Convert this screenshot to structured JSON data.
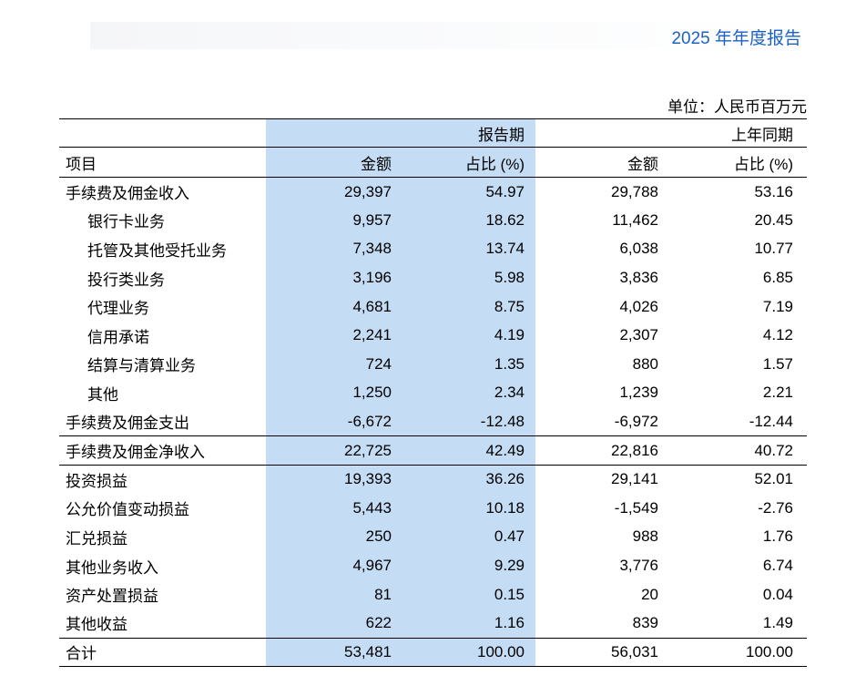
{
  "page": {
    "title": "2025 年年度报告",
    "unit_note": "单位：人民币百万元"
  },
  "colors": {
    "highlight": "#c5dcf5",
    "title_blue": "#1b62c4"
  },
  "table": {
    "header": {
      "item": "项目",
      "period_current": "报告期",
      "period_prior": "上年同期",
      "amount": "金额",
      "ratio": "占比 (%)"
    },
    "rows": [
      {
        "item": "手续费及佣金收入",
        "indent": 0,
        "current_amount": "29,397",
        "current_ratio": "54.97",
        "prior_amount": "29,788",
        "prior_ratio": "53.16"
      },
      {
        "item": "银行卡业务",
        "indent": 1,
        "current_amount": "9,957",
        "current_ratio": "18.62",
        "prior_amount": "11,462",
        "prior_ratio": "20.45"
      },
      {
        "item": "托管及其他受托业务",
        "indent": 1,
        "current_amount": "7,348",
        "current_ratio": "13.74",
        "prior_amount": "6,038",
        "prior_ratio": "10.77"
      },
      {
        "item": "投行类业务",
        "indent": 1,
        "current_amount": "3,196",
        "current_ratio": "5.98",
        "prior_amount": "3,836",
        "prior_ratio": "6.85"
      },
      {
        "item": "代理业务",
        "indent": 1,
        "current_amount": "4,681",
        "current_ratio": "8.75",
        "prior_amount": "4,026",
        "prior_ratio": "7.19"
      },
      {
        "item": "信用承诺",
        "indent": 1,
        "current_amount": "2,241",
        "current_ratio": "4.19",
        "prior_amount": "2,307",
        "prior_ratio": "4.12"
      },
      {
        "item": "结算与清算业务",
        "indent": 1,
        "current_amount": "724",
        "current_ratio": "1.35",
        "prior_amount": "880",
        "prior_ratio": "1.57"
      },
      {
        "item": "其他",
        "indent": 1,
        "current_amount": "1,250",
        "current_ratio": "2.34",
        "prior_amount": "1,239",
        "prior_ratio": "2.21"
      },
      {
        "item": "手续费及佣金支出",
        "indent": 0,
        "current_amount": "-6,672",
        "current_ratio": "-12.48",
        "prior_amount": "-6,972",
        "prior_ratio": "-12.44"
      },
      {
        "item": "手续费及佣金净收入",
        "indent": 0,
        "current_amount": "22,725",
        "current_ratio": "42.49",
        "prior_amount": "22,816",
        "prior_ratio": "40.72",
        "rule_above": true,
        "rule_below": true
      },
      {
        "item": "投资损益",
        "indent": 0,
        "current_amount": "19,393",
        "current_ratio": "36.26",
        "prior_amount": "29,141",
        "prior_ratio": "52.01"
      },
      {
        "item": "公允价值变动损益",
        "indent": 0,
        "current_amount": "5,443",
        "current_ratio": "10.18",
        "prior_amount": "-1,549",
        "prior_ratio": "-2.76"
      },
      {
        "item": "汇兑损益",
        "indent": 0,
        "current_amount": "250",
        "current_ratio": "0.47",
        "prior_amount": "988",
        "prior_ratio": "1.76"
      },
      {
        "item": "其他业务收入",
        "indent": 0,
        "current_amount": "4,967",
        "current_ratio": "9.29",
        "prior_amount": "3,776",
        "prior_ratio": "6.74"
      },
      {
        "item": "资产处置损益",
        "indent": 0,
        "current_amount": "81",
        "current_ratio": "0.15",
        "prior_amount": "20",
        "prior_ratio": "0.04"
      },
      {
        "item": "其他收益",
        "indent": 0,
        "current_amount": "622",
        "current_ratio": "1.16",
        "prior_amount": "839",
        "prior_ratio": "1.49"
      },
      {
        "item": "合计",
        "indent": 0,
        "current_amount": "53,481",
        "current_ratio": "100.00",
        "prior_amount": "56,031",
        "prior_ratio": "100.00",
        "rule_above": true
      }
    ]
  }
}
